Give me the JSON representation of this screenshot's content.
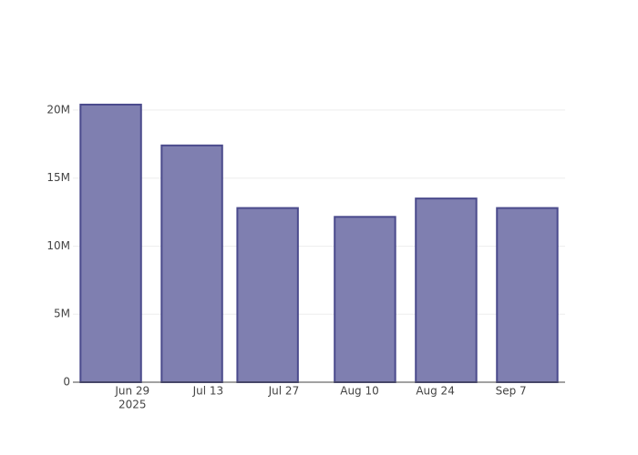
{
  "chart_data": {
    "type": "bar",
    "x": [
      "2025-06-25",
      "2025-07-10",
      "2025-07-24",
      "2025-08-11",
      "2025-08-26",
      "2025-09-10"
    ],
    "values": [
      20400000,
      17400000,
      12800000,
      12150000,
      13500000,
      12800000
    ],
    "color": "#7f7fb0",
    "edge_color": "#4a4a8c",
    "xlim": [
      "2025-06-18",
      "2025-09-17"
    ],
    "xticks": [
      {
        "value": "2025-06-29",
        "label": "Jun 29",
        "label2": "2025"
      },
      {
        "value": "2025-07-13",
        "label": "Jul 13"
      },
      {
        "value": "2025-07-27",
        "label": "Jul 27"
      },
      {
        "value": "2025-08-10",
        "label": "Aug 10"
      },
      {
        "value": "2025-08-24",
        "label": "Aug 24"
      },
      {
        "value": "2025-09-07",
        "label": "Sep 7"
      }
    ],
    "ylim": [
      0,
      21400000
    ],
    "yticks": [
      0,
      {
        "value": 5000000,
        "label": "5M"
      },
      {
        "value": 10000000,
        "label": "10M"
      },
      {
        "value": 15000000,
        "label": "15M"
      },
      {
        "value": 20000000,
        "label": "20M"
      }
    ],
    "grid": true
  }
}
